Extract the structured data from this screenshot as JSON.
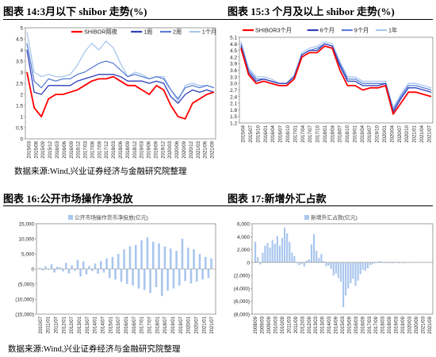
{
  "figures": {
    "fig14": {
      "title": "图表 14:3月以下 shibor 走势(%)"
    },
    "fig15": {
      "title": "图表 15:3 个月及以上 shibor 走势(%)"
    },
    "fig16": {
      "title": "图表 16:公开市场操作净投放"
    },
    "fig17": {
      "title": "图表 17:新增外汇占款"
    }
  },
  "sources": {
    "top": "数据来源:Wind,兴业证券经济与金融研究院整理",
    "bottom": "数据来源:Wind,兴业证券经济与金融研究院整理"
  },
  "colors": {
    "red": "#ff0000",
    "blue": "#2e3eb8",
    "mid": "#5b7fd6",
    "light": "#a9c6ee",
    "gray": "#bfbfbf"
  },
  "chart_data": [
    {
      "id": "fig14",
      "type": "line",
      "title": "",
      "ylim": [
        0,
        5
      ],
      "yticks": [
        "0",
        "0.5",
        "1",
        "1.5",
        "2",
        "2.5",
        "3",
        "3.5",
        "4",
        "4.5",
        "5"
      ],
      "xticks": [
        "2015/03",
        "2015/06",
        "2015/09",
        "2015/12",
        "2016/03",
        "2016/06",
        "2016/09",
        "2016/12",
        "2017/03",
        "2017/06",
        "2017/09",
        "2017/12",
        "2018/03",
        "2018/06",
        "2018/09",
        "2018/12",
        "2019/03",
        "2019/06",
        "2019/09",
        "2019/12",
        "2020/03",
        "2020/06",
        "2020/09",
        "2020/12",
        "2021/03",
        "2021/06",
        "2021/09"
      ],
      "legend": "top-right",
      "series": [
        {
          "name": "SHIBOR隔夜",
          "color": "#ff0000",
          "values": [
            3.0,
            1.4,
            1.0,
            1.8,
            2.0,
            2.0,
            2.1,
            2.2,
            2.4,
            2.6,
            2.7,
            2.7,
            2.8,
            2.6,
            2.4,
            2.4,
            2.2,
            2.0,
            2.4,
            2.2,
            1.5,
            1.0,
            0.9,
            1.6,
            1.8,
            2.0,
            2.1
          ]
        },
        {
          "name": "1周",
          "color": "#2e3eb8",
          "values": [
            4.0,
            2.1,
            2.0,
            2.4,
            2.4,
            2.4,
            2.4,
            2.6,
            2.7,
            2.8,
            2.9,
            2.9,
            2.9,
            2.8,
            2.6,
            2.6,
            2.6,
            2.5,
            2.6,
            2.5,
            1.9,
            1.6,
            2.0,
            2.2,
            2.1,
            2.2,
            2.1
          ]
        },
        {
          "name": "2周",
          "color": "#5b7fd6",
          "values": [
            4.3,
            2.6,
            2.3,
            2.7,
            2.6,
            2.7,
            2.7,
            2.9,
            3.0,
            3.2,
            3.4,
            3.5,
            3.4,
            3.1,
            2.8,
            2.9,
            2.8,
            2.7,
            2.8,
            2.7,
            2.2,
            1.8,
            2.3,
            2.4,
            2.3,
            2.4,
            2.3
          ]
        },
        {
          "name": "1个月",
          "color": "#a9c6ee",
          "values": [
            4.8,
            3.0,
            2.8,
            2.9,
            2.8,
            2.8,
            2.9,
            3.3,
            3.9,
            4.3,
            4.0,
            4.4,
            4.1,
            3.4,
            2.8,
            3.0,
            2.9,
            2.7,
            2.8,
            2.8,
            2.2,
            1.7,
            2.4,
            2.5,
            2.4,
            2.4,
            2.3
          ]
        }
      ]
    },
    {
      "id": "fig15",
      "type": "line",
      "title": "",
      "ylim": [
        1.2,
        5.1
      ],
      "yticks": [
        "1.2",
        "1.5",
        "1.8",
        "2.1",
        "2.4",
        "2.7",
        "3.0",
        "3.3",
        "3.6",
        "3.9",
        "4.2",
        "4.5",
        "4.8",
        "5.1"
      ],
      "xticks": [
        "2015/04",
        "2015/07",
        "2015/10",
        "2016/01",
        "2016/04",
        "2016/07",
        "2016/10",
        "2017/01",
        "2017/04",
        "2017/07",
        "2017/10",
        "2018/01",
        "2018/04",
        "2018/07",
        "2018/10",
        "2019/01",
        "2019/04",
        "2019/07",
        "2019/10",
        "2020/01",
        "2020/04",
        "2020/07",
        "2020/10",
        "2021/01",
        "2021/04",
        "2021/07"
      ],
      "legend": "top",
      "series": [
        {
          "name": "SHIBOR3个月",
          "color": "#ff0000",
          "values": [
            4.6,
            3.4,
            3.0,
            3.1,
            3.0,
            2.9,
            2.9,
            3.2,
            4.2,
            4.4,
            4.4,
            4.7,
            4.6,
            3.6,
            2.9,
            2.9,
            2.7,
            2.8,
            2.8,
            2.9,
            1.6,
            2.1,
            2.6,
            2.6,
            2.5,
            2.4
          ]
        },
        {
          "name": "6个月",
          "color": "#2e3eb8",
          "values": [
            4.7,
            3.5,
            3.1,
            3.2,
            3.1,
            3.0,
            3.0,
            3.3,
            4.3,
            4.5,
            4.5,
            4.8,
            4.7,
            3.8,
            3.1,
            3.1,
            2.9,
            2.9,
            2.9,
            3.0,
            1.7,
            2.3,
            2.8,
            2.8,
            2.7,
            2.6
          ]
        },
        {
          "name": "9个月",
          "color": "#5b7fd6",
          "values": [
            4.8,
            3.6,
            3.2,
            3.2,
            3.1,
            3.0,
            3.0,
            3.3,
            4.3,
            4.5,
            4.6,
            4.8,
            4.7,
            3.9,
            3.2,
            3.2,
            3.0,
            3.0,
            3.0,
            3.0,
            1.8,
            2.4,
            2.9,
            2.9,
            2.8,
            2.7
          ]
        },
        {
          "name": "1年",
          "color": "#a9c6ee",
          "values": [
            4.9,
            3.7,
            3.3,
            3.3,
            3.2,
            3.0,
            3.0,
            3.4,
            4.4,
            4.6,
            4.7,
            4.9,
            4.8,
            4.0,
            3.3,
            3.3,
            3.1,
            3.1,
            3.1,
            3.1,
            1.9,
            2.5,
            3.0,
            3.0,
            2.9,
            2.8
          ]
        }
      ]
    },
    {
      "id": "fig16",
      "type": "bar",
      "title": "",
      "ylim": [
        -15000,
        15000
      ],
      "yticks": [
        "(15,000)",
        "(10,000)",
        "(5,000)",
        "0",
        "5,000",
        "10,000",
        "15,000"
      ],
      "xticks": [
        "2010/07",
        "2011/01",
        "2011/07",
        "2012/01",
        "2012/07",
        "2013/01",
        "2013/07",
        "2014/01",
        "2014/07",
        "2015/01",
        "2015/07",
        "2016/01",
        "2016/07",
        "2017/01",
        "2017/07",
        "2018/01",
        "2018/07",
        "2019/01",
        "2019/07",
        "2020/01",
        "2020/07",
        "2021/01",
        "2021/07"
      ],
      "legend": "top-left",
      "series": [
        {
          "name": "公开市场操作货币净投放(亿元)",
          "color": "#a9c6ee",
          "values": [
            400,
            -500,
            900,
            -300,
            1500,
            -1200,
            700,
            500,
            -800,
            2000,
            -1500,
            1200,
            -600,
            3000,
            -2500,
            2500,
            -1800,
            1000,
            -700,
            1800,
            -1600,
            2600,
            -1200,
            3500,
            -3000,
            4000,
            -3500,
            5000,
            -4200,
            6500,
            -5000,
            7500,
            -5500,
            8000,
            -6500,
            9500,
            -7000,
            10500,
            -8000,
            9000,
            -6000,
            8500,
            -9000,
            7500,
            -7200,
            6800,
            -6500,
            6000,
            -5500,
            10000,
            -4000,
            7000,
            -4800,
            6500,
            -4200,
            5000,
            -3500,
            4000,
            -3000,
            3500
          ]
        }
      ]
    },
    {
      "id": "fig17",
      "type": "bar",
      "title": "",
      "ylim": [
        -8000,
        6000
      ],
      "yticks": [
        "(8,000)",
        "(6,000)",
        "(4,000)",
        "(2,000)",
        "0",
        "2,000",
        "4,000",
        "6,000"
      ],
      "xticks": [
        "2008/09",
        "2009/03",
        "2009/09",
        "2010/03",
        "2010/09",
        "2011/03",
        "2011/09",
        "2012/03",
        "2012/09",
        "2013/03",
        "2013/09",
        "2014/03",
        "2014/09",
        "2015/03",
        "2015/09",
        "2016/03",
        "2016/09",
        "2017/03",
        "2017/09",
        "2018/03",
        "2018/09",
        "2019/03",
        "2019/09",
        "2020/03",
        "2020/09",
        "2021/03",
        "2021/09"
      ],
      "legend": "top-right",
      "series": [
        {
          "name": "新增外汇占款(亿元)",
          "color": "#a9c6ee",
          "values": [
            3200,
            800,
            -300,
            1500,
            2600,
            3000,
            2300,
            3500,
            2900,
            4100,
            2600,
            3800,
            5400,
            4500,
            3200,
            1500,
            1000,
            -100,
            -400,
            -200,
            -600,
            300,
            500,
            2800,
            4400,
            1800,
            700,
            1300,
            200,
            -600,
            -500,
            -1000,
            -2000,
            -1700,
            -2400,
            -3000,
            -6900,
            -5100,
            -4000,
            -3200,
            -2500,
            -3600,
            -2800,
            -1800,
            -1100,
            -1300,
            -900,
            -400,
            -300,
            -100,
            100,
            200,
            -50,
            100,
            -100,
            -50,
            -100,
            100,
            -50,
            -80,
            50,
            -100,
            -50,
            80,
            -30,
            -60,
            50,
            40,
            -40,
            30,
            -20,
            20
          ]
        }
      ]
    }
  ]
}
